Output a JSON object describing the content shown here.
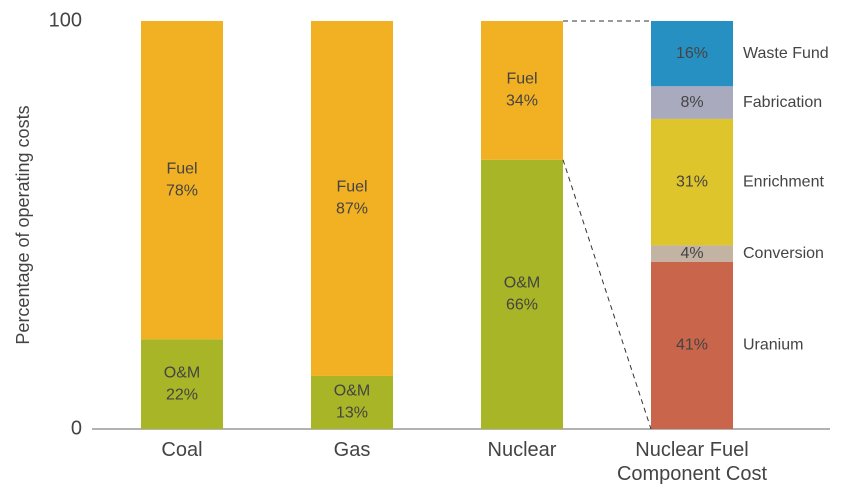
{
  "chart_data": {
    "type": "stacked_bar",
    "ylabel": "Percentage of operating costs",
    "categories": [
      "Coal",
      "Gas",
      "Nuclear",
      "Nuclear Fuel Component Cost"
    ],
    "ylim": [
      0,
      100
    ],
    "yticks": [
      0,
      100
    ],
    "grid": false,
    "series": [
      {
        "name": "O&M",
        "color": "#a8b526",
        "values": [
          22,
          13,
          66,
          null
        ],
        "value_labels": [
          "22%",
          "13%",
          "66%",
          null
        ]
      },
      {
        "name": "Fuel",
        "color": "#f2b122",
        "values": [
          78,
          87,
          34,
          null
        ],
        "value_labels": [
          "78%",
          "87%",
          "34%",
          null
        ]
      },
      {
        "name": "Uranium",
        "color": "#c9654a",
        "values": [
          null,
          null,
          null,
          41
        ],
        "value_labels": [
          null,
          null,
          null,
          "41%"
        ]
      },
      {
        "name": "Conversion",
        "color": "#c2b3a3",
        "values": [
          null,
          null,
          null,
          4
        ],
        "value_labels": [
          null,
          null,
          null,
          "4%"
        ]
      },
      {
        "name": "Enrichment",
        "color": "#dec52b",
        "values": [
          null,
          null,
          null,
          31
        ],
        "value_labels": [
          null,
          null,
          null,
          "31%"
        ]
      },
      {
        "name": "Fabrication",
        "color": "#aaaabf",
        "values": [
          null,
          null,
          null,
          8
        ],
        "value_labels": [
          null,
          null,
          null,
          "8%"
        ]
      },
      {
        "name": "Waste Fund",
        "color": "#2790c3",
        "values": [
          null,
          null,
          null,
          16
        ],
        "value_labels": [
          null,
          null,
          null,
          "16%"
        ]
      }
    ]
  }
}
